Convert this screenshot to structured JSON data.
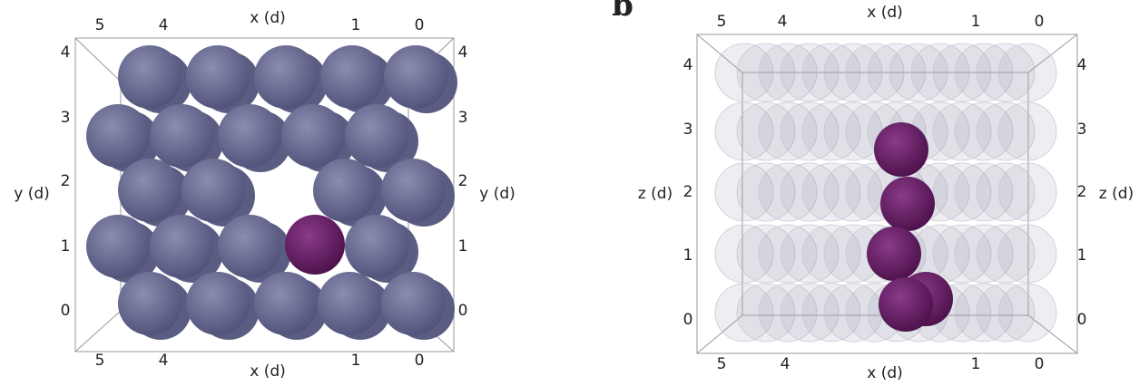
{
  "panel_a": {
    "x_label_top": "x (d)",
    "x_label_bottom": "x (d)",
    "y_label_left": "y (d)",
    "y_label_right": "y (d)",
    "x_ticks_top": [
      "5",
      "4",
      "1",
      "0"
    ],
    "x_ticks_bottom": [
      "5",
      "4",
      "1",
      "0"
    ],
    "y_ticks_left": [
      "4",
      "3",
      "2",
      "1",
      "0"
    ],
    "y_ticks_right": [
      "4",
      "3",
      "2",
      "1",
      "0"
    ]
  },
  "panel_b": {
    "label": "b",
    "x_label_top": "x (d)",
    "x_label_bottom": "x (d)",
    "z_label_left": "z (d)",
    "z_label_right": "z (d)",
    "x_ticks_top": [
      "5",
      "4",
      "1",
      "0"
    ],
    "x_ticks_bottom": [
      "5",
      "4",
      "1",
      "0"
    ],
    "z_ticks_left": [
      "4",
      "3",
      "2",
      "1",
      "0"
    ],
    "z_ticks_right": [
      "4",
      "3",
      "2",
      "1",
      "0"
    ]
  }
}
